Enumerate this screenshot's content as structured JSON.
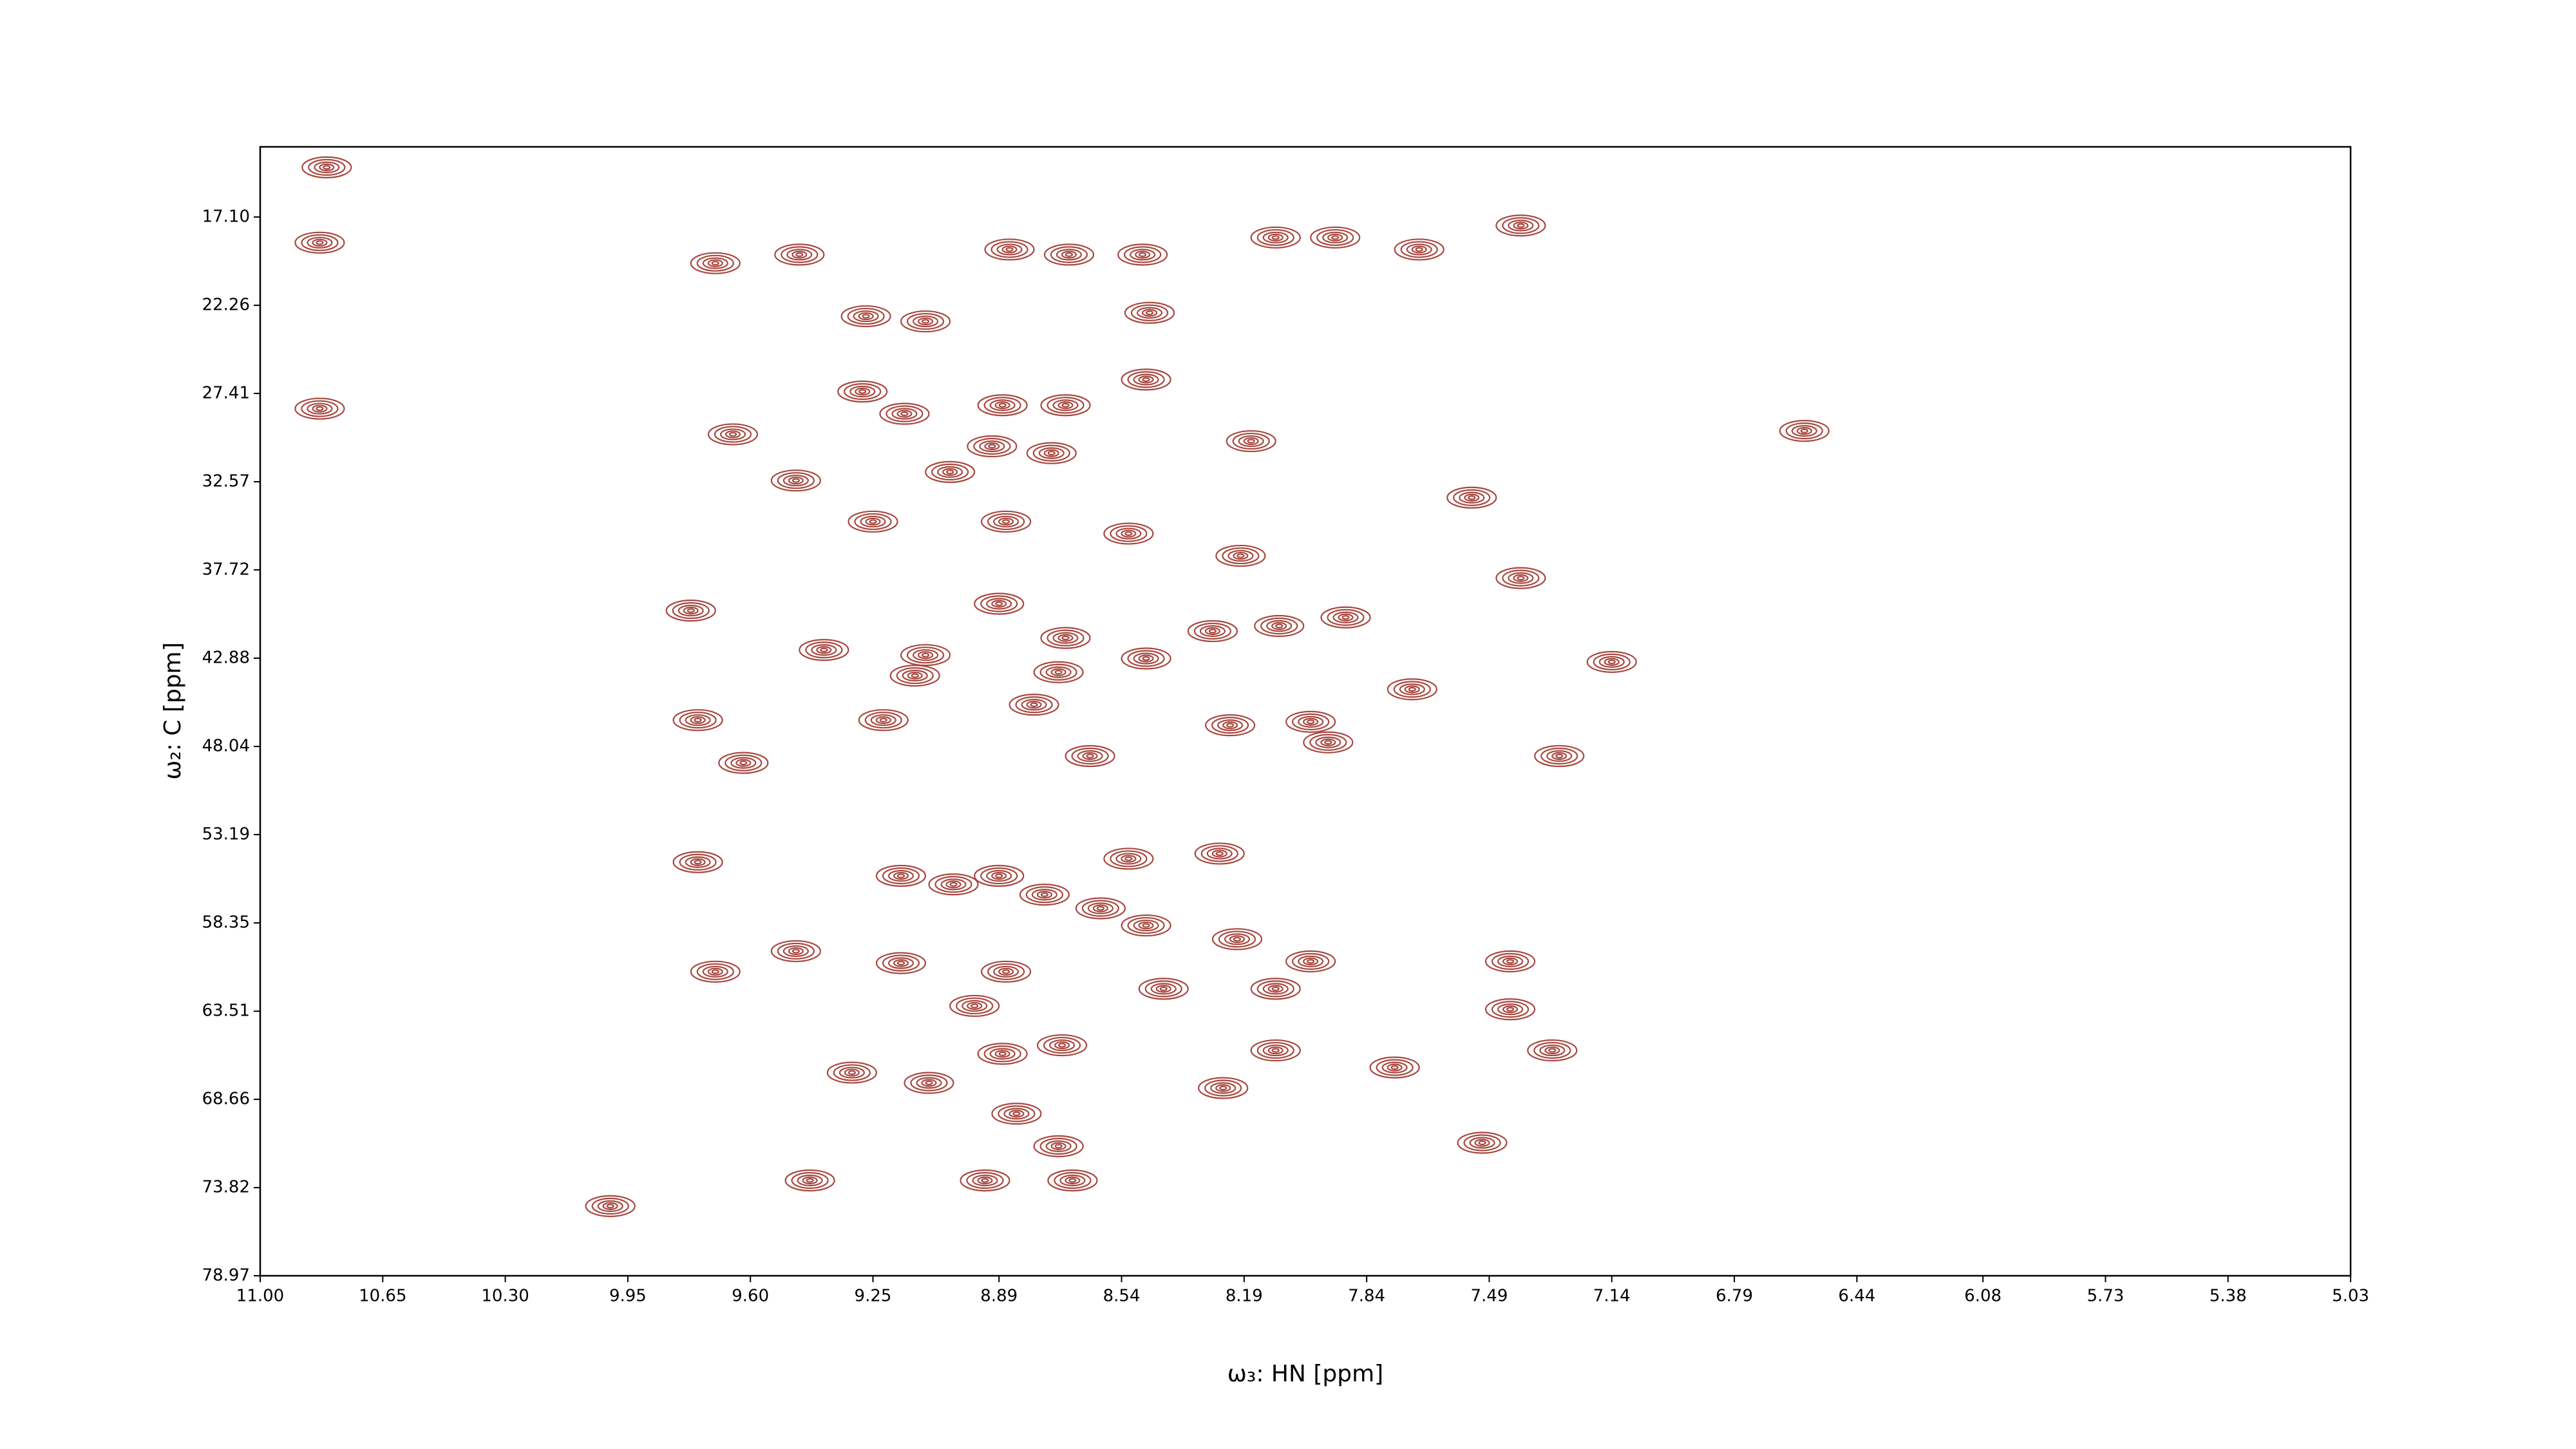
{
  "chart_data": {
    "type": "contour",
    "x_label": "ω₃: HN [ppm]",
    "y_label": "ω₂: C [ppm]",
    "xlim": [
      11.0,
      5.03
    ],
    "ylim": [
      78.97,
      13.0
    ],
    "xticks": [
      {
        "value": 11.0,
        "label": "11.00"
      },
      10.65,
      {
        "value": 10.3,
        "label": "10.30"
      },
      9.95,
      {
        "value": 9.6,
        "label": "9.60"
      },
      9.25,
      8.89,
      8.54,
      8.19,
      7.84,
      7.49,
      7.14,
      6.79,
      6.44,
      6.08,
      5.73,
      5.38,
      5.03
    ],
    "yticks": [
      {
        "value": 17.1,
        "label": "17.10"
      },
      22.26,
      27.41,
      32.57,
      37.72,
      42.88,
      48.04,
      53.19,
      58.35,
      63.51,
      68.66,
      73.82,
      78.97
    ],
    "color": "#a8473f",
    "peaks": {
      "x": [
        10.81,
        10.83,
        10.83,
        9.46,
        9.7,
        9.27,
        9.1,
        9.28,
        9.16,
        9.65,
        9.47,
        9.25,
        8.87,
        9.03,
        8.91,
        8.74,
        8.88,
        8.7,
        8.86,
        8.69,
        8.48,
        8.46,
        8.47,
        8.17,
        8.1,
        7.93,
        7.69,
        7.4,
        8.52,
        8.2,
        8.89,
        9.77,
        9.39,
        9.1,
        9.13,
        8.7,
        8.72,
        8.47,
        8.28,
        8.09,
        7.9,
        7.71,
        8.79,
        8.63,
        8.23,
        8.0,
        7.95,
        9.75,
        9.62,
        9.22,
        7.29,
        7.14,
        7.4,
        9.75,
        9.17,
        8.89,
        9.02,
        8.76,
        8.6,
        8.47,
        8.52,
        8.26,
        8.21,
        8.0,
        7.43,
        8.87,
        8.96,
        8.42,
        8.1,
        7.43,
        7.31,
        8.88,
        8.71,
        8.1,
        9.31,
        9.09,
        8.25,
        7.76,
        8.84,
        8.72,
        7.51,
        9.43,
        8.93,
        8.68,
        10.0,
        9.7,
        9.47,
        9.17,
        6.59,
        7.54
      ],
      "y": [
        14.2,
        18.6,
        28.3,
        19.3,
        19.8,
        22.9,
        23.2,
        27.3,
        28.6,
        29.8,
        32.5,
        34.9,
        34.9,
        32.0,
        30.5,
        30.9,
        28.1,
        28.1,
        19.0,
        19.3,
        19.3,
        22.7,
        26.6,
        30.2,
        18.3,
        18.3,
        19.0,
        17.6,
        35.6,
        36.9,
        39.7,
        40.1,
        42.4,
        42.7,
        43.9,
        41.7,
        43.7,
        42.9,
        41.3,
        41.0,
        40.5,
        44.7,
        45.6,
        48.6,
        46.8,
        46.6,
        47.8,
        46.5,
        49.0,
        46.5,
        48.6,
        43.1,
        38.2,
        54.8,
        55.6,
        55.6,
        56.1,
        56.7,
        57.5,
        58.5,
        54.6,
        54.3,
        59.3,
        60.6,
        60.6,
        61.2,
        63.2,
        62.2,
        62.2,
        63.4,
        65.8,
        66.0,
        65.5,
        65.8,
        67.1,
        67.7,
        68.0,
        66.8,
        69.5,
        71.4,
        71.2,
        73.4,
        73.4,
        73.4,
        74.9,
        61.2,
        60.0,
        60.7,
        29.6,
        33.5
      ]
    }
  }
}
